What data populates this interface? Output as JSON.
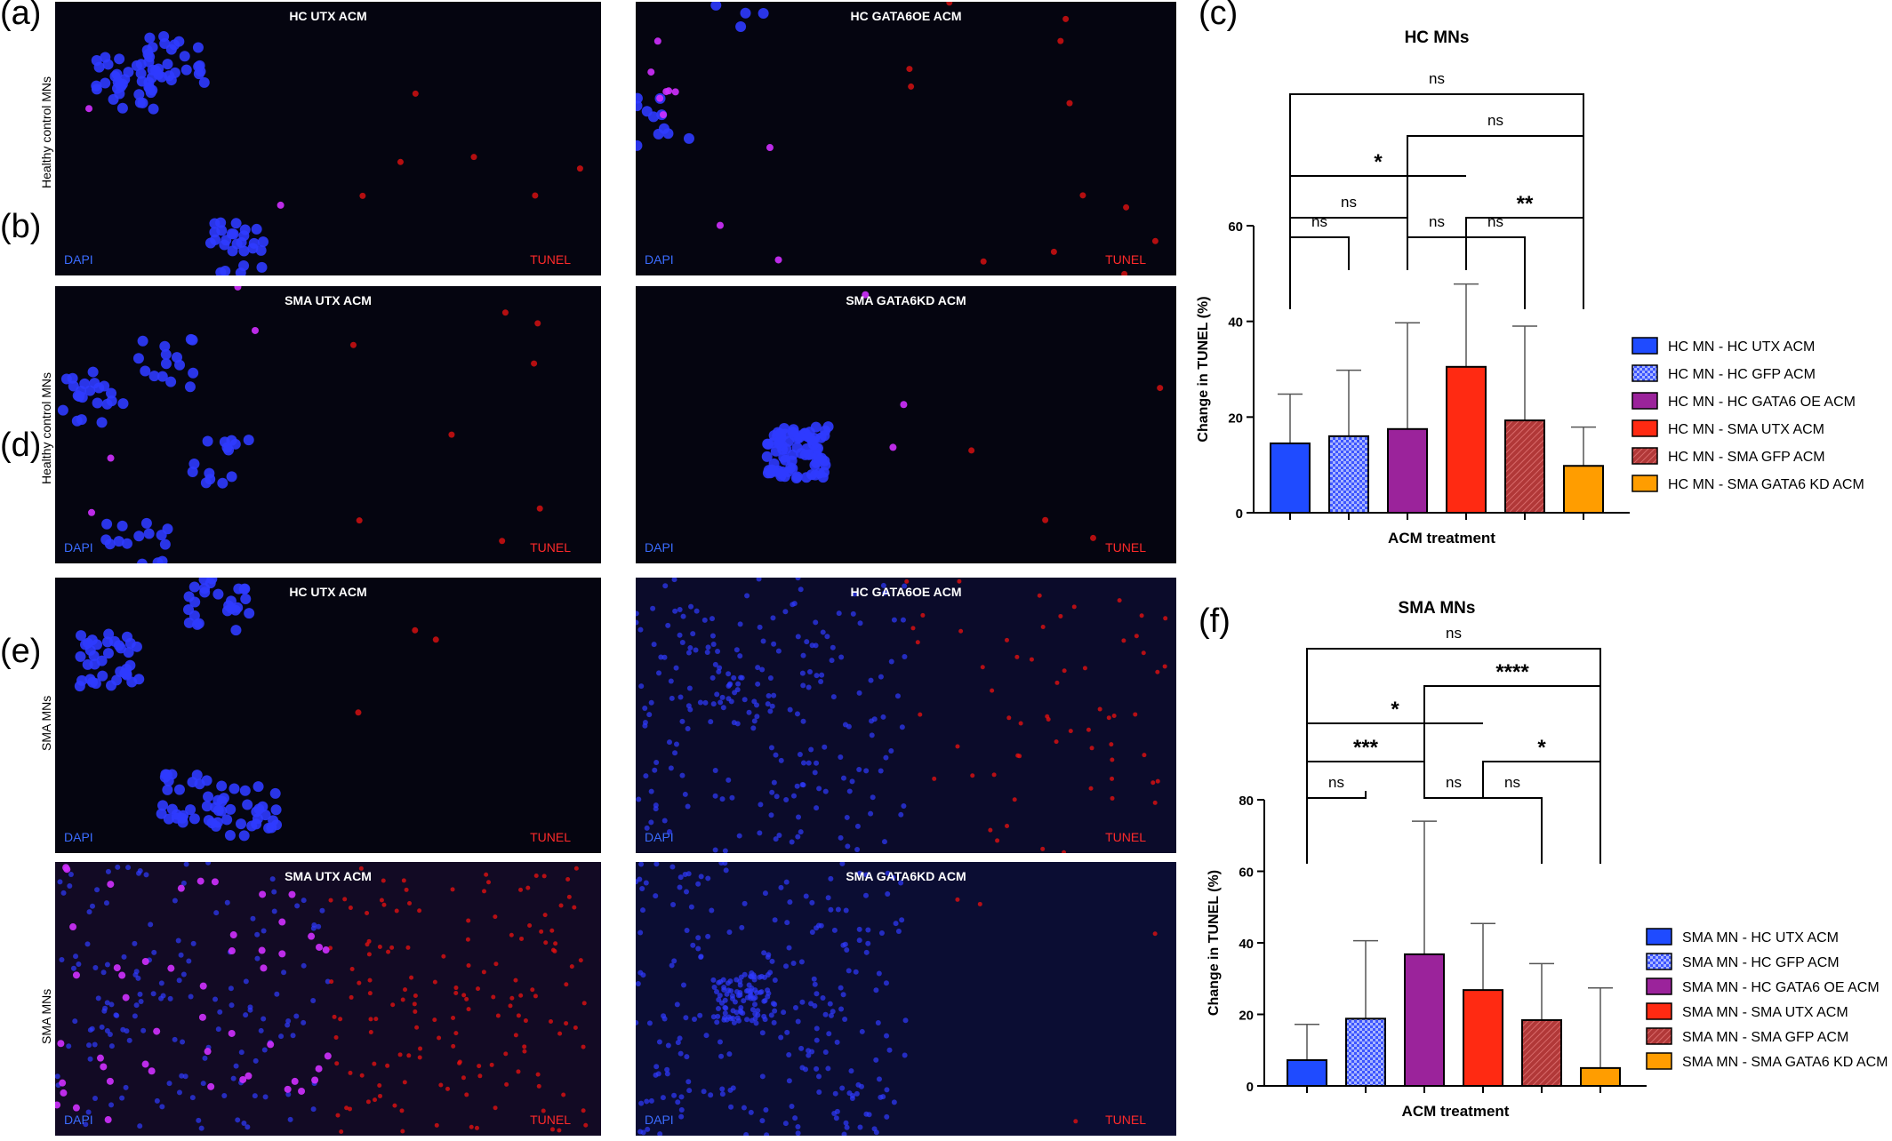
{
  "panel_labels": {
    "a": "(a)",
    "b": "(b)",
    "c": "(c)",
    "d": "(d)",
    "e": "(e)",
    "f": "(f)"
  },
  "row_labels": {
    "a": "Healthy control MNs",
    "b": "Healthy control MNs",
    "d": "SMA MNs",
    "e": "SMA MNs"
  },
  "micrographs": [
    {
      "title": "HC UTX ACM",
      "dapi": "DAPI",
      "tunel": "TUNEL"
    },
    {
      "title": "HC  GATA6OE ACM",
      "dapi": "DAPI",
      "tunel": "TUNEL"
    },
    {
      "title": "SMA UTX ACM",
      "dapi": "DAPI",
      "tunel": "TUNEL"
    },
    {
      "title": "SMA GATA6KD ACM",
      "dapi": "DAPI",
      "tunel": "TUNEL"
    },
    {
      "title": "HC UTX ACM",
      "dapi": "DAPI",
      "tunel": "TUNEL"
    },
    {
      "title": "HC  GATA6OE ACM",
      "dapi": "DAPI",
      "tunel": "TUNEL"
    },
    {
      "title": "SMA UTX ACM",
      "dapi": "DAPI",
      "tunel": "TUNEL"
    },
    {
      "title": "SMA GATA6KD ACM",
      "dapi": "DAPI",
      "tunel": "TUNEL"
    }
  ],
  "chart_data": [
    {
      "type": "bar",
      "title": "HC MNs",
      "xlabel": "ACM treatment",
      "ylabel": "Change in TUNEL (%)",
      "ylim": [
        0,
        60
      ],
      "yticks": [
        0,
        20,
        40,
        60
      ],
      "categories": [
        "HC MN - HC UTX ACM",
        "HC MN - HC GFP ACM",
        "HC MN - HC GATA6 OE ACM",
        "HC MN - SMA UTX ACM",
        "HC MN - SMA GFP ACM",
        "HC MN - SMA GATA6 KD ACM"
      ],
      "values": [
        14.5,
        16,
        17.5,
        30.5,
        19.3,
        9.8
      ],
      "errors": [
        10.3,
        13.8,
        22.2,
        17.3,
        19.7,
        8.1
      ],
      "colors": [
        "#1f4bff",
        "#4f6bff",
        "#9b239b",
        "#ff2a12",
        "#b93a3a",
        "#ff9d00"
      ],
      "patterns": [
        "solid",
        "checker",
        "solid",
        "solid",
        "hatch",
        "solid"
      ],
      "legend_position": "right",
      "significance": [
        {
          "from": 0,
          "to": 1,
          "label": "ns"
        },
        {
          "from": 2,
          "to": 3,
          "label": "ns"
        },
        {
          "from": 3,
          "to": 4,
          "label": "ns"
        },
        {
          "from": 0,
          "to": 2,
          "label": "ns"
        },
        {
          "from": 3,
          "to": 5,
          "label": "**"
        },
        {
          "from": 0,
          "to": 3,
          "label": "*"
        },
        {
          "from": 2,
          "to": 5,
          "label": "ns"
        },
        {
          "from": 0,
          "to": 5,
          "label": "ns"
        }
      ]
    },
    {
      "type": "bar",
      "title": "SMA MNs",
      "xlabel": "ACM treatment",
      "ylabel": "Change in TUNEL (%)",
      "ylim": [
        0,
        80
      ],
      "yticks": [
        0,
        20,
        40,
        60,
        80
      ],
      "categories": [
        "SMA MN - HC UTX ACM",
        "SMA MN - HC GFP ACM",
        "SMA MN - HC GATA6 OE ACM",
        "SMA MN - SMA UTX ACM",
        "SMA MN - SMA GFP ACM",
        "SMA MN - SMA GATA6 KD ACM"
      ],
      "values": [
        7.2,
        18.8,
        36.8,
        26.8,
        18.4,
        5
      ],
      "errors": [
        10,
        21.8,
        37.2,
        18.6,
        15.8,
        22.4
      ],
      "colors": [
        "#1f4bff",
        "#4f6bff",
        "#9b239b",
        "#ff2a12",
        "#b93a3a",
        "#ff9d00"
      ],
      "patterns": [
        "solid",
        "checker",
        "solid",
        "solid",
        "hatch",
        "solid"
      ],
      "legend_position": "right",
      "significance": [
        {
          "from": 0,
          "to": 1,
          "label": "ns"
        },
        {
          "from": 2,
          "to": 3,
          "label": "ns"
        },
        {
          "from": 3,
          "to": 4,
          "label": "ns"
        },
        {
          "from": 0,
          "to": 2,
          "label": "***"
        },
        {
          "from": 3,
          "to": 5,
          "label": "*"
        },
        {
          "from": 0,
          "to": 3,
          "label": "*"
        },
        {
          "from": 2,
          "to": 5,
          "label": "****"
        },
        {
          "from": 0,
          "to": 5,
          "label": "ns"
        }
      ]
    }
  ]
}
